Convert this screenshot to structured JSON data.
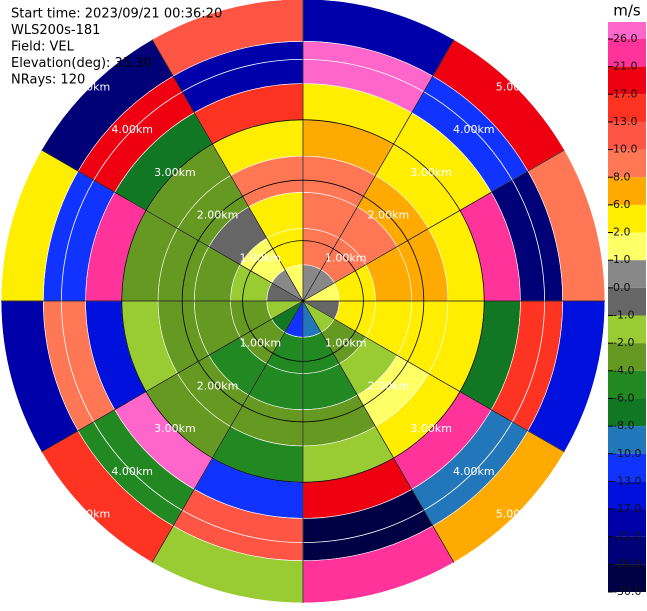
{
  "chart_data": {
    "type": "ppi",
    "header": [
      "Start time: 2023/09/21 00:36:20",
      "WLS200s-181",
      "Field: VEL",
      "Elevation(deg): 35.30",
      "NRays: 120"
    ],
    "rlim": [
      0,
      5
    ],
    "rings": [
      {
        "value": 1,
        "label": "1.00km"
      },
      {
        "value": 2,
        "label": "2.00km"
      },
      {
        "value": 3,
        "label": "3.00km"
      },
      {
        "value": 4,
        "label": "4.00km"
      },
      {
        "value": 5,
        "label": "5.00km"
      }
    ],
    "spokes": [
      0,
      30,
      60,
      90,
      120,
      150,
      180,
      210,
      240,
      270,
      300,
      330
    ],
    "azimuths": [
      0,
      30,
      60,
      90,
      120,
      150,
      180,
      210,
      240,
      270,
      300,
      330
    ],
    "sector_width": 30,
    "range_bins": [
      0,
      0.6,
      1.2,
      1.8,
      2.4,
      3,
      3.6,
      4.3,
      5
    ],
    "values": [
      [
        0.5,
        9,
        9,
        8,
        7,
        3,
        26,
        -21
      ],
      [
        0.5,
        8,
        9,
        7,
        5,
        2,
        -13,
        17
      ],
      [
        1.5,
        5,
        7,
        6,
        4,
        21,
        -26,
        8
      ],
      [
        -0.5,
        3,
        5,
        4,
        2,
        -8,
        13,
        -17
      ],
      [
        -2,
        -3,
        -1.5,
        1.5,
        3,
        24,
        -10,
        6
      ],
      [
        -9,
        -5,
        -5,
        -3,
        -1.5,
        17,
        -28,
        21
      ],
      [
        -11,
        -5,
        -5,
        -3,
        -5,
        -13,
        10,
        -2
      ],
      [
        -7,
        -4,
        -5,
        -4,
        -3,
        26,
        -6,
        13
      ],
      [
        -1.5,
        -3,
        -3,
        -3,
        -2,
        -17,
        8,
        -21
      ],
      [
        -0.5,
        -1.5,
        -3,
        -3,
        -3,
        21,
        -13,
        3
      ],
      [
        0.5,
        1.5,
        -0.5,
        -3,
        -2.5,
        -8,
        17,
        -26
      ],
      [
        1.5,
        3,
        3,
        9,
        5,
        13,
        -21,
        10
      ]
    ],
    "colorbar": {
      "title": "m/s",
      "ticks": [
        {
          "value": 26,
          "label": "26.0"
        },
        {
          "value": 21,
          "label": "21.0"
        },
        {
          "value": 17,
          "label": "17.0"
        },
        {
          "value": 13,
          "label": "13.0"
        },
        {
          "value": 10,
          "label": "10.0"
        },
        {
          "value": 8,
          "label": "8.0"
        },
        {
          "value": 6,
          "label": "6.0"
        },
        {
          "value": 2,
          "label": "2.0"
        },
        {
          "value": 1,
          "label": "1.0"
        },
        {
          "value": 0,
          "label": "0.0"
        },
        {
          "value": -1,
          "label": "-1.0"
        },
        {
          "value": -2,
          "label": "-2.0"
        },
        {
          "value": -4,
          "label": "-4.0"
        },
        {
          "value": -6,
          "label": "-6.0"
        },
        {
          "value": -8,
          "label": "-8.0"
        },
        {
          "value": -10,
          "label": "-10.0"
        },
        {
          "value": -13,
          "label": "-13.0"
        },
        {
          "value": -17,
          "label": "-17.0"
        },
        {
          "value": -21,
          "label": "-21.0"
        },
        {
          "value": -26,
          "label": "-26.0"
        },
        {
          "value": -30,
          "label": "-30.0"
        }
      ],
      "colors": [
        "#ff66cc",
        "#ff3399",
        "#ee0011",
        "#ff3322",
        "#ff5544",
        "#ff7755",
        "#ffaa00",
        "#ffee00",
        "#ffff66",
        "#888888",
        "#666666",
        "#99cc33",
        "#669922",
        "#228822",
        "#117722",
        "#2277bb",
        "#1133ff",
        "#0011dd",
        "#0000aa",
        "#000077",
        "#000044"
      ]
    }
  }
}
